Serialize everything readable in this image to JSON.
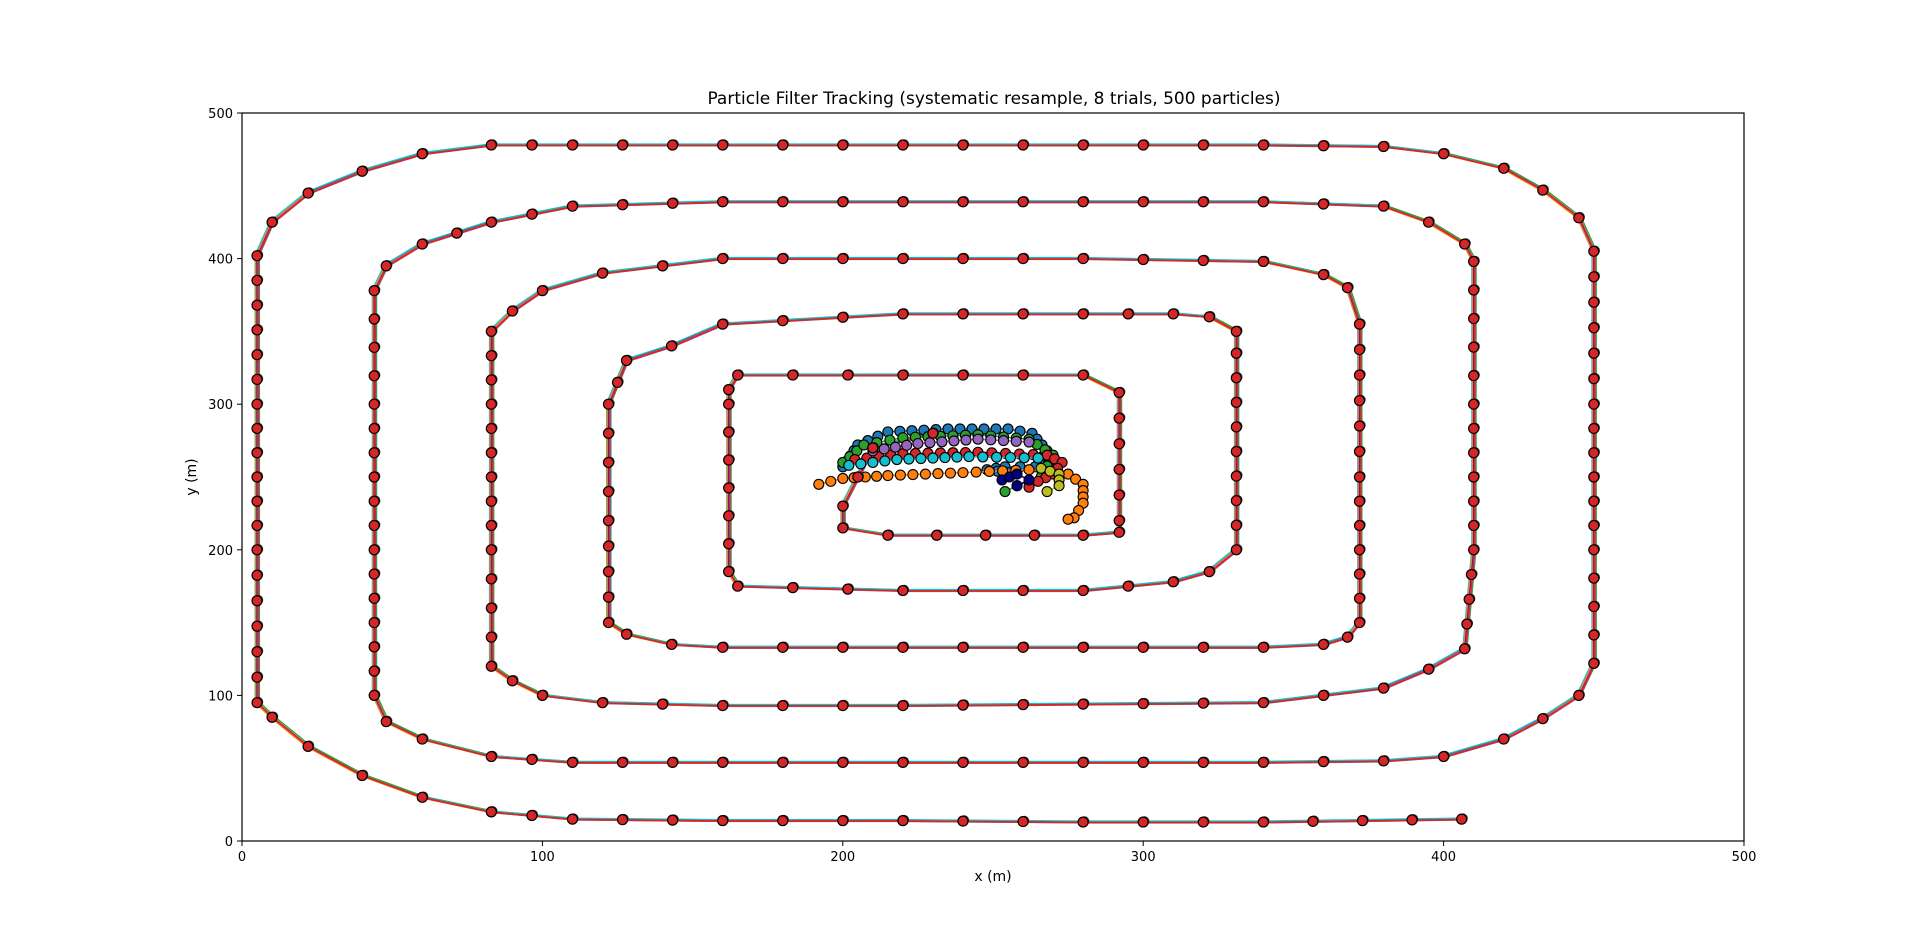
{
  "chart_data": {
    "type": "scatter",
    "title": "Particle Filter Tracking (systematic resample, 8 trials, 500 particles)",
    "xlabel": "x (m)",
    "ylabel": "y (m)",
    "xlim": [
      0,
      500
    ],
    "ylim": [
      0,
      500
    ],
    "xticks": [
      "0",
      "100",
      "200",
      "300",
      "400",
      "500"
    ],
    "yticks": [
      "0",
      "100",
      "200",
      "300",
      "400",
      "500"
    ],
    "grid": false,
    "legend": "none",
    "true_path_color": "#0000ff",
    "marker_color": "#d62728",
    "marker_edge_color": "#000000",
    "trial_colors": [
      "#1f77b4",
      "#ff7f0e",
      "#2ca02c",
      "#d62728",
      "#17becf",
      "#bcbd22",
      "#000080",
      "#9467bd"
    ],
    "spiral_path": {
      "x": [
        406,
        340,
        280,
        220,
        160,
        110,
        83,
        60,
        40,
        22,
        10,
        5,
        5,
        5,
        5,
        10,
        22,
        40,
        60,
        83,
        110,
        160,
        220,
        280,
        340,
        380,
        400,
        420,
        433,
        445,
        450,
        450,
        450,
        450,
        445,
        433,
        420,
        400,
        380,
        340,
        280,
        220,
        160,
        110,
        83,
        60,
        48,
        44,
        44,
        44,
        44,
        48,
        60,
        83,
        110,
        160,
        220,
        280,
        340,
        380,
        395,
        407,
        410,
        410,
        410,
        407,
        395,
        380,
        340,
        280,
        220,
        160,
        120,
        100,
        90,
        83,
        83,
        83,
        83,
        90,
        100,
        120,
        160,
        220,
        280,
        340,
        360,
        368,
        372,
        372,
        372,
        368,
        360,
        340,
        280,
        220,
        160,
        143,
        128,
        122,
        122,
        122,
        128,
        143,
        160,
        220,
        280,
        310,
        322,
        331,
        331,
        331,
        322,
        310,
        280,
        220,
        165,
        162,
        162,
        162,
        165,
        220,
        280,
        292,
        292,
        292,
        280,
        215,
        200,
        200,
        210,
        230
      ],
      "y": [
        15,
        13,
        13,
        14,
        14,
        15,
        20,
        30,
        45,
        65,
        85,
        95,
        200,
        300,
        402,
        425,
        445,
        460,
        472,
        478,
        478,
        478,
        478,
        478,
        478,
        477,
        472,
        462,
        447,
        428,
        405,
        300,
        200,
        122,
        100,
        84,
        70,
        58,
        55,
        54,
        54,
        54,
        54,
        54,
        58,
        70,
        82,
        100,
        200,
        300,
        378,
        395,
        410,
        425,
        436,
        439,
        439,
        439,
        439,
        436,
        425,
        410,
        398,
        300,
        200,
        132,
        118,
        105,
        95,
        94,
        93,
        93,
        95,
        100,
        110,
        120,
        200,
        300,
        350,
        364,
        378,
        390,
        400,
        400,
        400,
        398,
        389,
        380,
        355,
        250,
        150,
        140,
        135,
        133,
        133,
        133,
        133,
        135,
        142,
        150,
        220,
        300,
        330,
        340,
        355,
        362,
        362,
        362,
        360,
        350,
        335,
        200,
        185,
        178,
        172,
        172,
        175,
        185,
        300,
        310,
        320,
        320,
        320,
        308,
        220,
        212,
        210,
        210,
        215,
        230,
        270,
        280
      ]
    },
    "trial_tracks": [
      {
        "x": [
          200,
          205,
          215,
          235,
          255,
          263,
          268,
          264,
          254,
          248,
          255
        ],
        "y": [
          257,
          272,
          281,
          283,
          283,
          280,
          268,
          257,
          257,
          255,
          253
        ]
      },
      {
        "x": [
          192,
          200,
          215,
          240,
          262,
          275,
          280,
          280,
          277,
          275
        ],
        "y": [
          245,
          249,
          251,
          253,
          255,
          252,
          245,
          232,
          222,
          221
        ]
      },
      {
        "x": [
          200,
          207,
          220,
          245,
          262,
          270,
          266,
          258,
          254
        ],
        "y": [
          260,
          272,
          277,
          279,
          276,
          265,
          250,
          244,
          240
        ]
      },
      {
        "x": [
          204,
          220,
          245,
          268,
          273,
          270,
          265,
          262
        ],
        "y": [
          262,
          266,
          267,
          265,
          260,
          252,
          247,
          243
        ]
      },
      {
        "x": [
          202,
          218,
          242,
          265
        ],
        "y": [
          258,
          262,
          264,
          263
        ]
      },
      {
        "x": [
          266,
          272,
          272,
          268
        ],
        "y": [
          256,
          252,
          244,
          240
        ]
      },
      {
        "x": [
          253,
          258,
          262,
          258
        ],
        "y": [
          248,
          252,
          248,
          244
        ]
      },
      {
        "x": [
          210,
          225,
          245,
          262
        ],
        "y": [
          268,
          273,
          276,
          274
        ]
      }
    ]
  }
}
